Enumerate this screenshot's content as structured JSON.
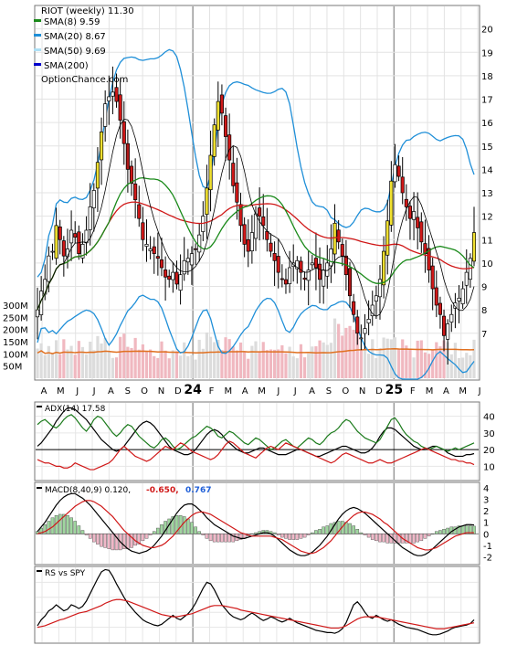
{
  "chart_data": [
    {
      "type": "candlestick",
      "panel": "price",
      "ticker_label": "RIOT (weekly) 11.30",
      "legend": [
        {
          "label": "SMA(8) 9.59",
          "color": "#1a8a1a"
        },
        {
          "label": "SMA(20) 8.67",
          "color": "#1f8fd8"
        },
        {
          "label": "SMA(50) 9.69",
          "color": "#aee0f5"
        },
        {
          "label": "SMA(200)",
          "color": "#0000cc"
        }
      ],
      "watermark": "OptionChance.com",
      "x_labels": [
        "A",
        "M",
        "J",
        "J",
        "A",
        "S",
        "O",
        "N",
        "D",
        "24",
        "F",
        "M",
        "A",
        "M",
        "J",
        "J",
        "A",
        "S",
        "O",
        "N",
        "D",
        "25",
        "F",
        "M",
        "A",
        "M",
        "J"
      ],
      "y_ticks": [
        20,
        19,
        18,
        17,
        16,
        15,
        14,
        13,
        12,
        11,
        10,
        9,
        8,
        7
      ],
      "ylim": [
        5.0,
        21.0
      ],
      "bar_count": 117,
      "close_approx": [
        8.0,
        8.8,
        9.3,
        10.3,
        10.5,
        11.6,
        11.0,
        10.3,
        10.6,
        11.4,
        11.1,
        10.4,
        10.8,
        11.4,
        12.4,
        13.1,
        14.3,
        15.6,
        16.8,
        17.1,
        17.3,
        16.9,
        16.1,
        15.1,
        14.0,
        13.4,
        12.7,
        11.9,
        11.0,
        10.8,
        10.6,
        10.4,
        10.2,
        9.8,
        9.4,
        9.3,
        9.6,
        9.1,
        9.5,
        10.1,
        10.2,
        10.4,
        10.6,
        11.2,
        12.0,
        13.2,
        14.6,
        15.9,
        16.9,
        16.4,
        15.4,
        14.4,
        13.3,
        12.6,
        11.6,
        10.8,
        10.5,
        11.3,
        12.1,
        12.0,
        11.6,
        11.0,
        10.5,
        10.1,
        9.6,
        9.3,
        9.1,
        9.8,
        10.0,
        10.1,
        9.6,
        9.3,
        9.7,
        10.0,
        9.8,
        9.3,
        9.7,
        10.0,
        10.6,
        11.7,
        10.9,
        10.3,
        9.5,
        8.6,
        7.8,
        7.0,
        6.8,
        7.2,
        7.6,
        8.2,
        8.6,
        9.3,
        10.5,
        11.8,
        13.5,
        14.2,
        13.7,
        13.0,
        12.4,
        11.9,
        12.2,
        11.5,
        10.9,
        10.4,
        9.7,
        8.9,
        8.2,
        7.8,
        6.9,
        7.4,
        7.8,
        8.3,
        8.5,
        8.9,
        9.6,
        10.2,
        11.3
      ],
      "volume_axis_ticks": [
        "300M",
        "250M",
        "200M",
        "150M",
        "100M",
        "50M"
      ],
      "volume_ylim": [
        0,
        330
      ]
    },
    {
      "type": "line",
      "panel": "adx",
      "label": "ADX(14) 17.58",
      "y_ticks": [
        40,
        30,
        20,
        10
      ],
      "ylim": [
        2,
        48
      ],
      "series": [
        {
          "color": "#000000",
          "values": [
            22,
            24,
            27,
            30,
            33,
            37,
            40,
            43,
            45,
            45,
            44,
            42,
            40,
            38,
            35,
            32,
            29,
            26,
            24,
            22,
            20,
            19,
            20,
            22,
            25,
            28,
            31,
            34,
            36,
            37,
            36,
            34,
            31,
            28,
            25,
            22,
            20,
            19,
            18,
            17,
            17,
            18,
            20,
            23,
            26,
            29,
            31,
            32,
            31,
            29,
            26,
            24,
            22,
            20,
            19,
            18,
            18,
            19,
            20,
            21,
            21,
            20,
            19,
            18,
            17,
            17,
            17,
            18,
            19,
            20,
            20,
            19,
            18,
            17,
            16,
            16,
            17,
            18,
            19,
            20,
            21,
            22,
            22,
            21,
            20,
            19,
            18,
            18,
            19,
            21,
            24,
            28,
            31,
            33,
            33,
            32,
            30,
            28,
            26,
            24,
            22,
            21,
            20,
            20,
            21,
            22,
            22,
            21,
            20,
            18,
            17,
            16,
            16,
            16,
            17,
            17,
            17.6
          ]
        },
        {
          "color": "#1a7a1a",
          "values": [
            35,
            37,
            38,
            36,
            34,
            33,
            35,
            38,
            40,
            41,
            39,
            36,
            33,
            31,
            34,
            38,
            40,
            39,
            36,
            33,
            30,
            28,
            30,
            33,
            35,
            34,
            31,
            28,
            26,
            24,
            22,
            21,
            23,
            26,
            27,
            25,
            22,
            20,
            21,
            23,
            25,
            27,
            28,
            30,
            32,
            34,
            33,
            31,
            28,
            27,
            29,
            31,
            30,
            28,
            26,
            24,
            23,
            25,
            27,
            26,
            24,
            22,
            20,
            21,
            23,
            25,
            26,
            24,
            22,
            21,
            23,
            25,
            27,
            26,
            24,
            23,
            25,
            28,
            30,
            31,
            33,
            36,
            38,
            37,
            34,
            31,
            29,
            27,
            26,
            25,
            24,
            26,
            30,
            34,
            38,
            39,
            36,
            32,
            29,
            27,
            25,
            24,
            22,
            21,
            20,
            21,
            22,
            21,
            20,
            19,
            20,
            21,
            20,
            21,
            22,
            23,
            24
          ]
        },
        {
          "color": "#d01818",
          "values": [
            14,
            13,
            12,
            12,
            11,
            10,
            10,
            9,
            9,
            10,
            12,
            11,
            10,
            9,
            8,
            8,
            9,
            10,
            11,
            12,
            14,
            17,
            20,
            22,
            20,
            18,
            16,
            15,
            14,
            13,
            14,
            16,
            18,
            20,
            22,
            21,
            20,
            22,
            24,
            23,
            21,
            19,
            18,
            17,
            16,
            15,
            14,
            15,
            17,
            20,
            23,
            25,
            24,
            22,
            20,
            18,
            17,
            16,
            15,
            17,
            19,
            21,
            22,
            21,
            20,
            22,
            24,
            23,
            22,
            21,
            20,
            19,
            18,
            17,
            16,
            15,
            14,
            13,
            12,
            13,
            15,
            17,
            18,
            17,
            16,
            15,
            14,
            13,
            12,
            12,
            13,
            14,
            13,
            12,
            12,
            13,
            14,
            15,
            16,
            17,
            18,
            19,
            20,
            21,
            20,
            19,
            18,
            17,
            16,
            15,
            14,
            14,
            13,
            13,
            12,
            12,
            11
          ]
        }
      ]
    },
    {
      "type": "bar+line",
      "panel": "macd",
      "label": "MACD(8,40,9) 0.120,",
      "value_red": "-0.650,",
      "value_blue": "0.767",
      "y_ticks": [
        "4",
        "3",
        "2",
        "1",
        "0",
        "-1",
        "-2"
      ],
      "ylim": [
        -2.6,
        4.4
      ],
      "macd": [
        0.2,
        0.6,
        1.0,
        1.5,
        2.0,
        2.5,
        2.9,
        3.2,
        3.4,
        3.5,
        3.5,
        3.3,
        3.1,
        2.8,
        2.5,
        2.1,
        1.7,
        1.3,
        0.9,
        0.5,
        0.1,
        -0.3,
        -0.7,
        -1.0,
        -1.3,
        -1.5,
        -1.6,
        -1.7,
        -1.6,
        -1.5,
        -1.3,
        -1.0,
        -0.6,
        -0.2,
        0.3,
        0.8,
        1.3,
        1.8,
        2.2,
        2.5,
        2.6,
        2.6,
        2.4,
        2.1,
        1.8,
        1.4,
        1.1,
        0.8,
        0.6,
        0.4,
        0.2,
        0.0,
        -0.2,
        -0.3,
        -0.4,
        -0.4,
        -0.3,
        -0.2,
        -0.1,
        0.0,
        0.1,
        0.1,
        0.0,
        -0.2,
        -0.5,
        -0.8,
        -1.1,
        -1.4,
        -1.6,
        -1.8,
        -1.9,
        -1.9,
        -1.8,
        -1.6,
        -1.3,
        -1.0,
        -0.6,
        -0.2,
        0.3,
        0.8,
        1.3,
        1.7,
        2.0,
        2.2,
        2.3,
        2.2,
        2.0,
        1.8,
        1.5,
        1.2,
        0.9,
        0.6,
        0.3,
        0.0,
        -0.3,
        -0.6,
        -0.9,
        -1.2,
        -1.4,
        -1.6,
        -1.8,
        -1.9,
        -1.9,
        -1.8,
        -1.6,
        -1.3,
        -1.0,
        -0.7,
        -0.4,
        -0.1,
        0.2,
        0.4,
        0.6,
        0.7,
        0.8,
        0.8,
        0.77
      ],
      "signal": [
        0.0,
        0.1,
        0.2,
        0.4,
        0.6,
        0.9,
        1.2,
        1.5,
        1.8,
        2.1,
        2.4,
        2.6,
        2.8,
        2.9,
        2.9,
        2.8,
        2.6,
        2.4,
        2.1,
        1.8,
        1.5,
        1.1,
        0.7,
        0.3,
        0.0,
        -0.3,
        -0.6,
        -0.8,
        -1.0,
        -1.1,
        -1.2,
        -1.2,
        -1.1,
        -1.0,
        -0.8,
        -0.5,
        -0.2,
        0.2,
        0.6,
        1.0,
        1.3,
        1.6,
        1.8,
        1.9,
        1.9,
        1.8,
        1.7,
        1.5,
        1.3,
        1.1,
        0.9,
        0.7,
        0.5,
        0.3,
        0.1,
        0.0,
        -0.1,
        -0.2,
        -0.2,
        -0.2,
        -0.2,
        -0.2,
        -0.2,
        -0.3,
        -0.4,
        -0.5,
        -0.7,
        -0.9,
        -1.1,
        -1.3,
        -1.5,
        -1.6,
        -1.7,
        -1.7,
        -1.6,
        -1.4,
        -1.2,
        -0.9,
        -0.6,
        -0.2,
        0.2,
        0.6,
        1.0,
        1.3,
        1.6,
        1.8,
        1.9,
        1.9,
        1.8,
        1.7,
        1.5,
        1.3,
        1.0,
        0.8,
        0.5,
        0.2,
        -0.1,
        -0.4,
        -0.6,
        -0.8,
        -1.0,
        -1.2,
        -1.3,
        -1.4,
        -1.4,
        -1.3,
        -1.2,
        -1.0,
        -0.8,
        -0.6,
        -0.4,
        -0.2,
        -0.1,
        0.0,
        0.1,
        0.1,
        0.1
      ]
    },
    {
      "type": "line",
      "panel": "rs",
      "label": "RS vs SPY",
      "ylim": [
        0,
        10
      ],
      "series": [
        {
          "color": "#000000",
          "values": [
            2.2,
            3.0,
            3.5,
            4.2,
            4.5,
            5.0,
            4.6,
            4.2,
            4.4,
            5.0,
            4.8,
            4.5,
            4.8,
            5.5,
            6.5,
            7.5,
            8.5,
            9.4,
            9.7,
            9.6,
            8.8,
            7.8,
            6.9,
            6.0,
            5.2,
            4.6,
            4.0,
            3.5,
            3.0,
            2.7,
            2.5,
            2.3,
            2.2,
            2.4,
            2.8,
            3.2,
            3.6,
            3.2,
            3.0,
            3.4,
            3.8,
            4.4,
            5.2,
            6.2,
            7.2,
            8.0,
            7.8,
            7.0,
            6.0,
            5.0,
            4.4,
            3.8,
            3.4,
            3.2,
            3.0,
            3.2,
            3.6,
            3.9,
            3.6,
            3.2,
            2.9,
            3.1,
            3.4,
            3.2,
            2.9,
            2.7,
            2.9,
            3.2,
            2.9,
            2.6,
            2.4,
            2.2,
            2.0,
            1.8,
            1.6,
            1.5,
            1.4,
            1.3,
            1.3,
            1.2,
            1.4,
            1.8,
            2.6,
            3.8,
            5.0,
            5.4,
            4.8,
            4.0,
            3.4,
            3.2,
            3.6,
            3.3,
            3.0,
            2.8,
            3.0,
            2.7,
            2.4,
            2.2,
            2.0,
            1.9,
            1.8,
            1.7,
            1.5,
            1.3,
            1.1,
            1.0,
            1.0,
            1.1,
            1.3,
            1.5,
            1.8,
            2.0,
            2.1,
            2.2,
            2.3,
            2.5,
            3.0
          ]
        },
        {
          "color": "#d01818",
          "values": [
            2.0,
            2.1,
            2.2,
            2.4,
            2.6,
            2.8,
            3.0,
            3.1,
            3.3,
            3.5,
            3.7,
            3.9,
            4.0,
            4.1,
            4.3,
            4.5,
            4.7,
            4.9,
            5.2,
            5.4,
            5.6,
            5.7,
            5.7,
            5.6,
            5.5,
            5.3,
            5.1,
            4.9,
            4.7,
            4.5,
            4.3,
            4.1,
            3.9,
            3.7,
            3.6,
            3.5,
            3.4,
            3.4,
            3.5,
            3.6,
            3.7,
            3.8,
            4.0,
            4.2,
            4.4,
            4.6,
            4.8,
            4.9,
            4.9,
            4.9,
            4.8,
            4.7,
            4.6,
            4.5,
            4.3,
            4.2,
            4.1,
            4.0,
            3.9,
            3.8,
            3.7,
            3.6,
            3.5,
            3.4,
            3.3,
            3.2,
            3.1,
            3.0,
            2.9,
            2.8,
            2.7,
            2.6,
            2.5,
            2.4,
            2.3,
            2.2,
            2.1,
            2.0,
            1.9,
            1.9,
            1.9,
            2.0,
            2.2,
            2.5,
            2.8,
            3.1,
            3.3,
            3.4,
            3.4,
            3.4,
            3.4,
            3.3,
            3.2,
            3.1,
            3.0,
            2.9,
            2.8,
            2.7,
            2.6,
            2.5,
            2.4,
            2.3,
            2.2,
            2.1,
            2.0,
            1.9,
            1.8,
            1.8,
            1.8,
            1.9,
            2.0,
            2.1,
            2.2,
            2.3,
            2.4,
            2.5,
            2.6
          ]
        }
      ]
    }
  ]
}
